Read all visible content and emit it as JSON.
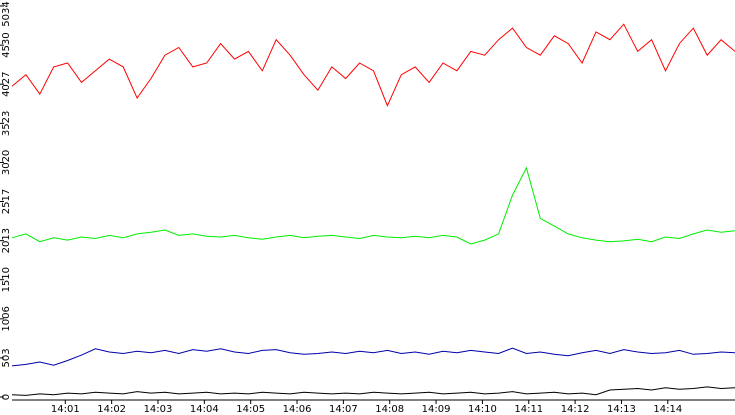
{
  "chart_data": {
    "type": "line",
    "x": [
      -0.15,
      0.15,
      0.45,
      0.75,
      1.05,
      1.35,
      1.65,
      1.95,
      2.25,
      2.55,
      2.85,
      3.15,
      3.45,
      3.75,
      4.05,
      4.35,
      4.65,
      4.95,
      5.25,
      5.55,
      5.85,
      6.15,
      6.45,
      6.75,
      7.05,
      7.35,
      7.65,
      7.95,
      8.25,
      8.55,
      8.85,
      9.15,
      9.45,
      9.75,
      10.05,
      10.35,
      10.65,
      10.95,
      11.25,
      11.55,
      11.85,
      12.15,
      12.45,
      12.75,
      13.05,
      13.35,
      13.65,
      13.95,
      14.25,
      14.55,
      14.85,
      15.15,
      15.45
    ],
    "series": [
      {
        "color": "#ff0000",
        "values": [
          4000,
          4150,
          3900,
          4250,
          4300,
          4050,
          4200,
          4350,
          4250,
          3850,
          4100,
          4400,
          4500,
          4250,
          4300,
          4550,
          4350,
          4450,
          4200,
          4600,
          4400,
          4150,
          3950,
          4250,
          4100,
          4300,
          4200,
          3750,
          4150,
          4250,
          4050,
          4300,
          4200,
          4450,
          4400,
          4600,
          4750,
          4500,
          4400,
          4650,
          4550,
          4300,
          4700,
          4600,
          4800,
          4450,
          4600,
          4200,
          4550,
          4750,
          4400,
          4600,
          4450
        ]
      },
      {
        "color": "#00ee00",
        "values": [
          2050,
          2100,
          2000,
          2050,
          2020,
          2060,
          2040,
          2080,
          2050,
          2100,
          2120,
          2150,
          2080,
          2100,
          2070,
          2060,
          2080,
          2050,
          2030,
          2060,
          2080,
          2050,
          2070,
          2080,
          2060,
          2040,
          2080,
          2060,
          2050,
          2070,
          2050,
          2080,
          2060,
          1970,
          2020,
          2100,
          2600,
          2950,
          2300,
          2200,
          2100,
          2050,
          2020,
          2000,
          2010,
          2030,
          2000,
          2060,
          2040,
          2100,
          2150,
          2120,
          2140
        ]
      },
      {
        "color": "#0000aa",
        "values": [
          400,
          420,
          450,
          410,
          470,
          540,
          620,
          580,
          560,
          590,
          570,
          600,
          560,
          610,
          590,
          620,
          580,
          560,
          600,
          610,
          570,
          550,
          560,
          580,
          560,
          590,
          570,
          600,
          560,
          580,
          550,
          590,
          570,
          600,
          580,
          560,
          630,
          560,
          580,
          550,
          530,
          570,
          600,
          560,
          610,
          580,
          560,
          570,
          600,
          550,
          560,
          580,
          570
        ]
      },
      {
        "color": "#000000",
        "values": [
          30,
          20,
          40,
          30,
          50,
          40,
          60,
          50,
          40,
          70,
          50,
          60,
          40,
          50,
          60,
          40,
          50,
          40,
          60,
          50,
          40,
          60,
          50,
          40,
          50,
          40,
          60,
          50,
          40,
          50,
          60,
          40,
          50,
          60,
          40,
          50,
          70,
          40,
          50,
          60,
          40,
          50,
          30,
          90,
          100,
          110,
          90,
          120,
          100,
          110,
          130,
          110,
          120
        ]
      }
    ],
    "xlim": [
      -0.15,
      15.45
    ],
    "xticks": [
      {
        "value": 1,
        "label": "14:01"
      },
      {
        "value": 2,
        "label": "14:02"
      },
      {
        "value": 3,
        "label": "14:03"
      },
      {
        "value": 4,
        "label": "14:04"
      },
      {
        "value": 5,
        "label": "14:05"
      },
      {
        "value": 6,
        "label": "14:06"
      },
      {
        "value": 7,
        "label": "14:07"
      },
      {
        "value": 8,
        "label": "14:08"
      },
      {
        "value": 9,
        "label": "14:09"
      },
      {
        "value": 10,
        "label": "14:10"
      },
      {
        "value": 11,
        "label": "14:11"
      },
      {
        "value": 12,
        "label": "14:12"
      },
      {
        "value": 13,
        "label": "14:13"
      },
      {
        "value": 14,
        "label": "14:14"
      }
    ],
    "ylim": [
      0,
      5034
    ],
    "yticks": [
      0,
      503,
      1006,
      1510,
      2013,
      2517,
      3020,
      3523,
      4027,
      4530,
      5034
    ]
  }
}
